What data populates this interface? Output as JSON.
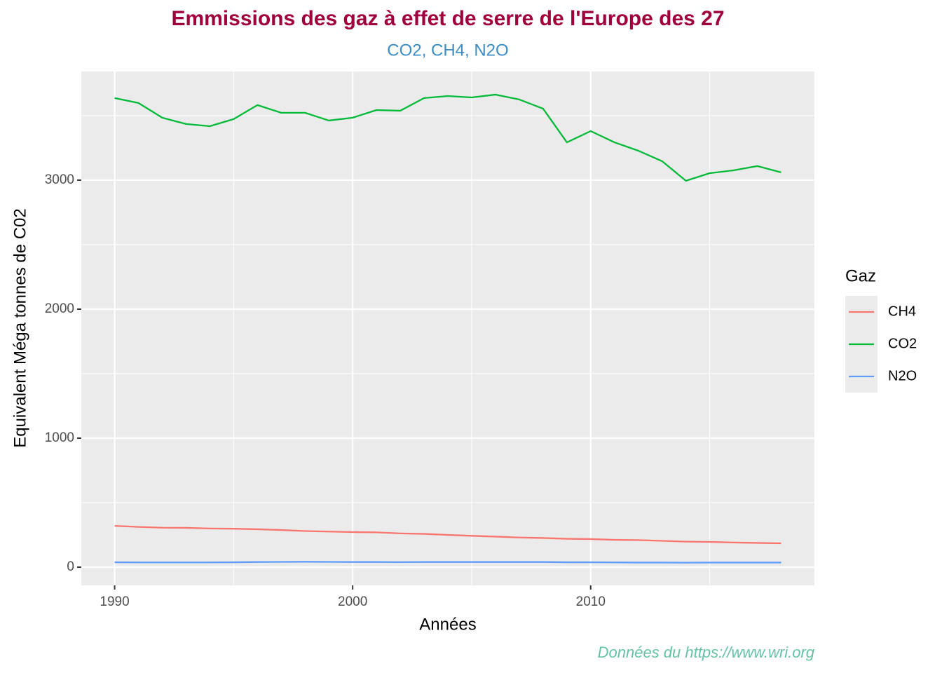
{
  "chart_data": {
    "type": "line",
    "title": "Emmissions des gaz à effet de serre de l'Europe des 27",
    "subtitle": "CO2, CH4, N2O",
    "x_label": "Années",
    "y_label": "Equivalent Méga tonnes de C02",
    "caption": "Données du https://www.wri.org",
    "legend_title": "Gaz",
    "legend_position": "right",
    "x": [
      1990,
      1991,
      1992,
      1993,
      1994,
      1995,
      1996,
      1997,
      1998,
      1999,
      2000,
      2001,
      2002,
      2003,
      2004,
      2005,
      2006,
      2007,
      2008,
      2009,
      2010,
      2011,
      2012,
      2013,
      2014,
      2015,
      2016,
      2017,
      2018
    ],
    "series": [
      {
        "name": "CH4",
        "color": "#F8766D",
        "values": [
          320,
          312,
          306,
          305,
          300,
          298,
          294,
          288,
          280,
          276,
          272,
          270,
          262,
          258,
          250,
          243,
          237,
          230,
          226,
          220,
          218,
          212,
          210,
          204,
          198,
          196,
          191,
          188,
          185
        ]
      },
      {
        "name": "CO2",
        "color": "#00BA38",
        "values": [
          3636,
          3598,
          3484,
          3435,
          3418,
          3473,
          3582,
          3522,
          3522,
          3462,
          3484,
          3543,
          3538,
          3636,
          3652,
          3641,
          3663,
          3625,
          3554,
          3293,
          3380,
          3293,
          3228,
          3147,
          2995,
          3054,
          3076,
          3109,
          3060
        ]
      },
      {
        "name": "N2O",
        "color": "#619CFF",
        "values": [
          38,
          37,
          37,
          37,
          37,
          38,
          40,
          41,
          42,
          41,
          40,
          40,
          39,
          40,
          40,
          40,
          40,
          40,
          40,
          38,
          38,
          37,
          36,
          36,
          35,
          36,
          36,
          36,
          36
        ]
      }
    ],
    "xlim": [
      1988.6,
      2019.4
    ],
    "ylim": [
      -141,
      3842
    ],
    "xticks": [
      1990,
      2000,
      2010
    ],
    "yticks": [
      0,
      1000,
      2000,
      3000
    ],
    "x_minor_ticks": [
      1995,
      2005,
      2015
    ],
    "y_minor_ticks": [
      500,
      1500,
      2500,
      3500
    ],
    "grid": true
  }
}
